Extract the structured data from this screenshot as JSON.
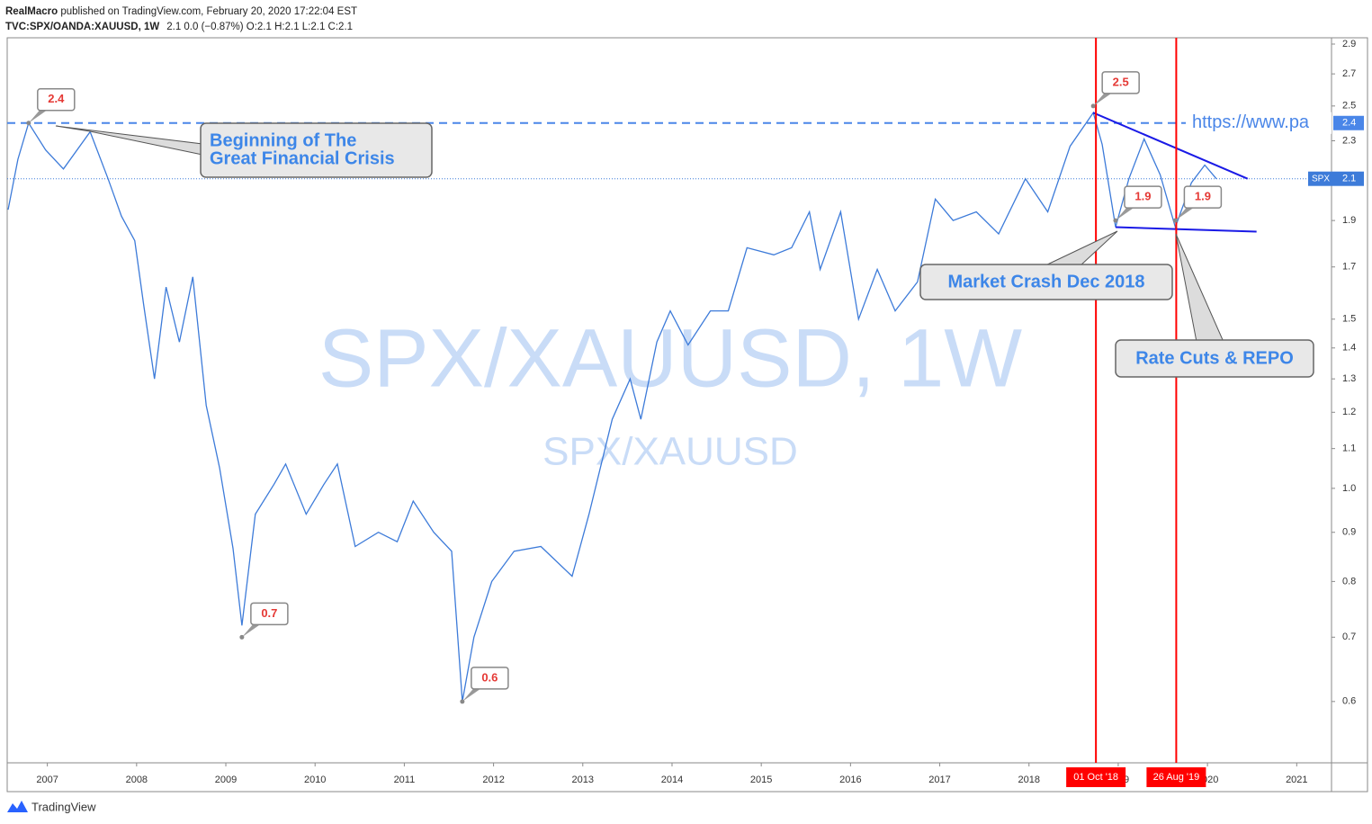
{
  "header": {
    "author": "RealMacro",
    "published": " published on TradingView.com, February 20, 2020 17:22:04 EST",
    "symbol": "TVC:SPX/OANDA:XAUUSD, 1W",
    "quote": "2.1 0.0 (−0.87%) O:2.1 H:2.1 L:2.1 C:2.1"
  },
  "chart_data": {
    "type": "line",
    "watermark": "SPX/XAUUSD, 1W",
    "watermark_sub": "SPX/XAUUSD",
    "log_scale": true,
    "grid": false,
    "xlim": [
      2006.55,
      2021.39
    ],
    "ylim": [
      0.518,
      2.944
    ],
    "xticks": [
      2007,
      2008,
      2009,
      2010,
      2011,
      2012,
      2013,
      2014,
      2015,
      2016,
      2017,
      2018,
      2019,
      2020,
      2021
    ],
    "yticks": [
      2.9,
      2.7,
      2.5,
      2.3,
      1.9,
      1.7,
      1.5,
      1.4,
      1.3,
      1.2,
      1.1,
      {
        "value": 1,
        "label": "1.0"
      },
      0.9,
      0.8,
      0.7,
      0.6
    ],
    "series": [
      {
        "name": "SPX",
        "color": "#3d7bd9",
        "x": [
          2006.56,
          2006.67,
          2006.79,
          2006.98,
          2007.18,
          2007.48,
          2007.68,
          2007.83,
          2007.98,
          2008.08,
          2008.2,
          2008.33,
          2008.48,
          2008.63,
          2008.78,
          2008.93,
          2009.08,
          2009.18,
          2009.33,
          2009.54,
          2009.67,
          2009.9,
          2010.1,
          2010.25,
          2010.45,
          2010.71,
          2010.92,
          2011.1,
          2011.33,
          2011.53,
          2011.65,
          2011.78,
          2011.98,
          2012.23,
          2012.53,
          2012.88,
          2013.07,
          2013.33,
          2013.53,
          2013.65,
          2013.83,
          2013.98,
          2014.18,
          2014.43,
          2014.63,
          2014.84,
          2015.14,
          2015.34,
          2015.54,
          2015.66,
          2015.89,
          2016.09,
          2016.3,
          2016.5,
          2016.75,
          2016.95,
          2017.15,
          2017.41,
          2017.66,
          2017.96,
          2018.21,
          2018.46,
          2018.72,
          2018.82,
          2018.97,
          2019.12,
          2019.29,
          2019.47,
          2019.64,
          2019.82,
          2019.97,
          2020.1
        ],
        "values": [
          1.95,
          2.2,
          2.4,
          2.25,
          2.15,
          2.35,
          2.1,
          1.92,
          1.81,
          1.55,
          1.3,
          1.62,
          1.42,
          1.66,
          1.22,
          1.05,
          0.866,
          0.72,
          0.94,
          1.01,
          1.06,
          0.94,
          1.01,
          1.06,
          0.87,
          0.9,
          0.88,
          0.97,
          0.9,
          0.86,
          0.6,
          0.7,
          0.8,
          0.86,
          0.87,
          0.81,
          0.94,
          1.18,
          1.3,
          1.18,
          1.42,
          1.53,
          1.41,
          1.53,
          1.53,
          1.78,
          1.75,
          1.78,
          1.94,
          1.69,
          1.94,
          1.5,
          1.69,
          1.53,
          1.64,
          2.0,
          1.9,
          1.94,
          1.84,
          2.1,
          1.94,
          2.27,
          2.46,
          2.28,
          1.87,
          2.1,
          2.31,
          2.12,
          1.87,
          2.08,
          2.17,
          2.1
        ]
      }
    ],
    "level": {
      "value": 2.4,
      "color": "#4a86e8",
      "note": "https://www.pa"
    },
    "price_labels": [
      {
        "x": 2006.79,
        "value": 2.4
      },
      {
        "x": 2009.18,
        "value": 0.7
      },
      {
        "x": 2011.65,
        "value": 0.6
      },
      {
        "x": 2018.72,
        "value": 2.5
      },
      {
        "x": 2018.97,
        "value": 1.9
      },
      {
        "x": 2019.64,
        "value": 1.9
      }
    ],
    "events": [
      {
        "x": 2018.75,
        "label": "01 Oct '18"
      },
      {
        "x": 2019.65,
        "label": "26 Aug '19"
      }
    ],
    "event_color": "#ff0000",
    "trendlines": [
      {
        "x": [
          2018.72,
          2020.45
        ],
        "values": [
          2.46,
          2.1
        ]
      },
      {
        "x": [
          2018.97,
          2020.55
        ],
        "values": [
          1.87,
          1.85
        ]
      }
    ],
    "trend_color": "#1a1ae6",
    "annotations": {
      "crisis": [
        "Beginning of  The",
        "Great Financial Crisis"
      ],
      "crash": "Market Crash Dec 2018",
      "cuts": "Rate Cuts & REPO"
    }
  },
  "brand": "TradingView"
}
